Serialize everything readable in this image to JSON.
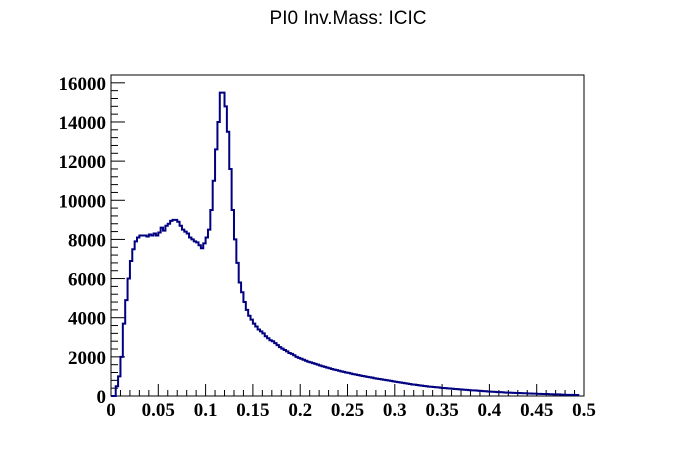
{
  "chart_data": {
    "type": "step",
    "title": "PI0 Inv.Mass: ICIC",
    "xlabel": "",
    "ylabel": "",
    "xlim": [
      0,
      0.5
    ],
    "ylim": [
      0,
      16400
    ],
    "grid": false,
    "line_color": "#000080",
    "x_tick_labels": [
      "0",
      "0.05",
      "0.1",
      "0.15",
      "0.2",
      "0.25",
      "0.3",
      "0.35",
      "0.4",
      "0.45",
      "0.5"
    ],
    "x_ticks": [
      0,
      0.05,
      0.1,
      0.15,
      0.2,
      0.25,
      0.3,
      0.35,
      0.4,
      0.45,
      0.5
    ],
    "y_tick_labels": [
      "0",
      "2000",
      "4000",
      "6000",
      "8000",
      "10000",
      "12000",
      "14000",
      "16000"
    ],
    "y_ticks": [
      0,
      2000,
      4000,
      6000,
      8000,
      10000,
      12000,
      14000,
      16000
    ],
    "bin_width": 0.0025,
    "series": [
      {
        "values": [
          0,
          0,
          500,
          1000,
          2000,
          3700,
          4900,
          6000,
          6900,
          7500,
          7900,
          8100,
          8200,
          8200,
          8200,
          8150,
          8250,
          8200,
          8300,
          8200,
          8350,
          8600,
          8450,
          8700,
          8800,
          8950,
          9000,
          9000,
          8900,
          8700,
          8500,
          8400,
          8300,
          8100,
          8000,
          7900,
          7850,
          7700,
          7550,
          7800,
          8100,
          8500,
          9500,
          11000,
          12600,
          14000,
          15500,
          15500,
          14800,
          13500,
          11600,
          9500,
          8000,
          6800,
          5800,
          5300,
          4800,
          4400,
          4100,
          3900,
          3700,
          3550,
          3400,
          3300,
          3200,
          3050,
          2950,
          2850,
          2800,
          2700,
          2600,
          2500,
          2420,
          2350,
          2280,
          2200,
          2150,
          2080,
          2000,
          1950,
          1900,
          1850,
          1800,
          1750,
          1720,
          1680,
          1640,
          1600,
          1560,
          1520,
          1490,
          1450,
          1420,
          1380,
          1350,
          1320,
          1290,
          1260,
          1230,
          1200,
          1180,
          1150,
          1120,
          1100,
          1070,
          1050,
          1020,
          1000,
          980,
          960,
          940,
          910,
          890,
          870,
          850,
          830,
          810,
          790,
          770,
          750,
          730,
          710,
          690,
          670,
          650,
          630,
          610,
          590,
          580,
          560,
          540,
          530,
          510,
          500,
          480,
          470,
          460,
          450,
          440,
          420,
          410,
          400,
          390,
          380,
          370,
          360,
          350,
          340,
          330,
          320,
          310,
          300,
          290,
          285,
          280,
          270,
          260,
          250,
          240,
          230,
          225,
          220,
          210,
          200,
          195,
          190,
          180,
          175,
          170,
          165,
          160,
          155,
          150,
          145,
          140,
          140,
          130,
          130,
          120,
          120,
          110,
          110,
          100,
          100,
          100,
          90,
          90,
          80,
          80,
          80,
          70,
          70,
          60,
          60,
          60,
          55,
          50,
          50
        ]
      }
    ]
  }
}
